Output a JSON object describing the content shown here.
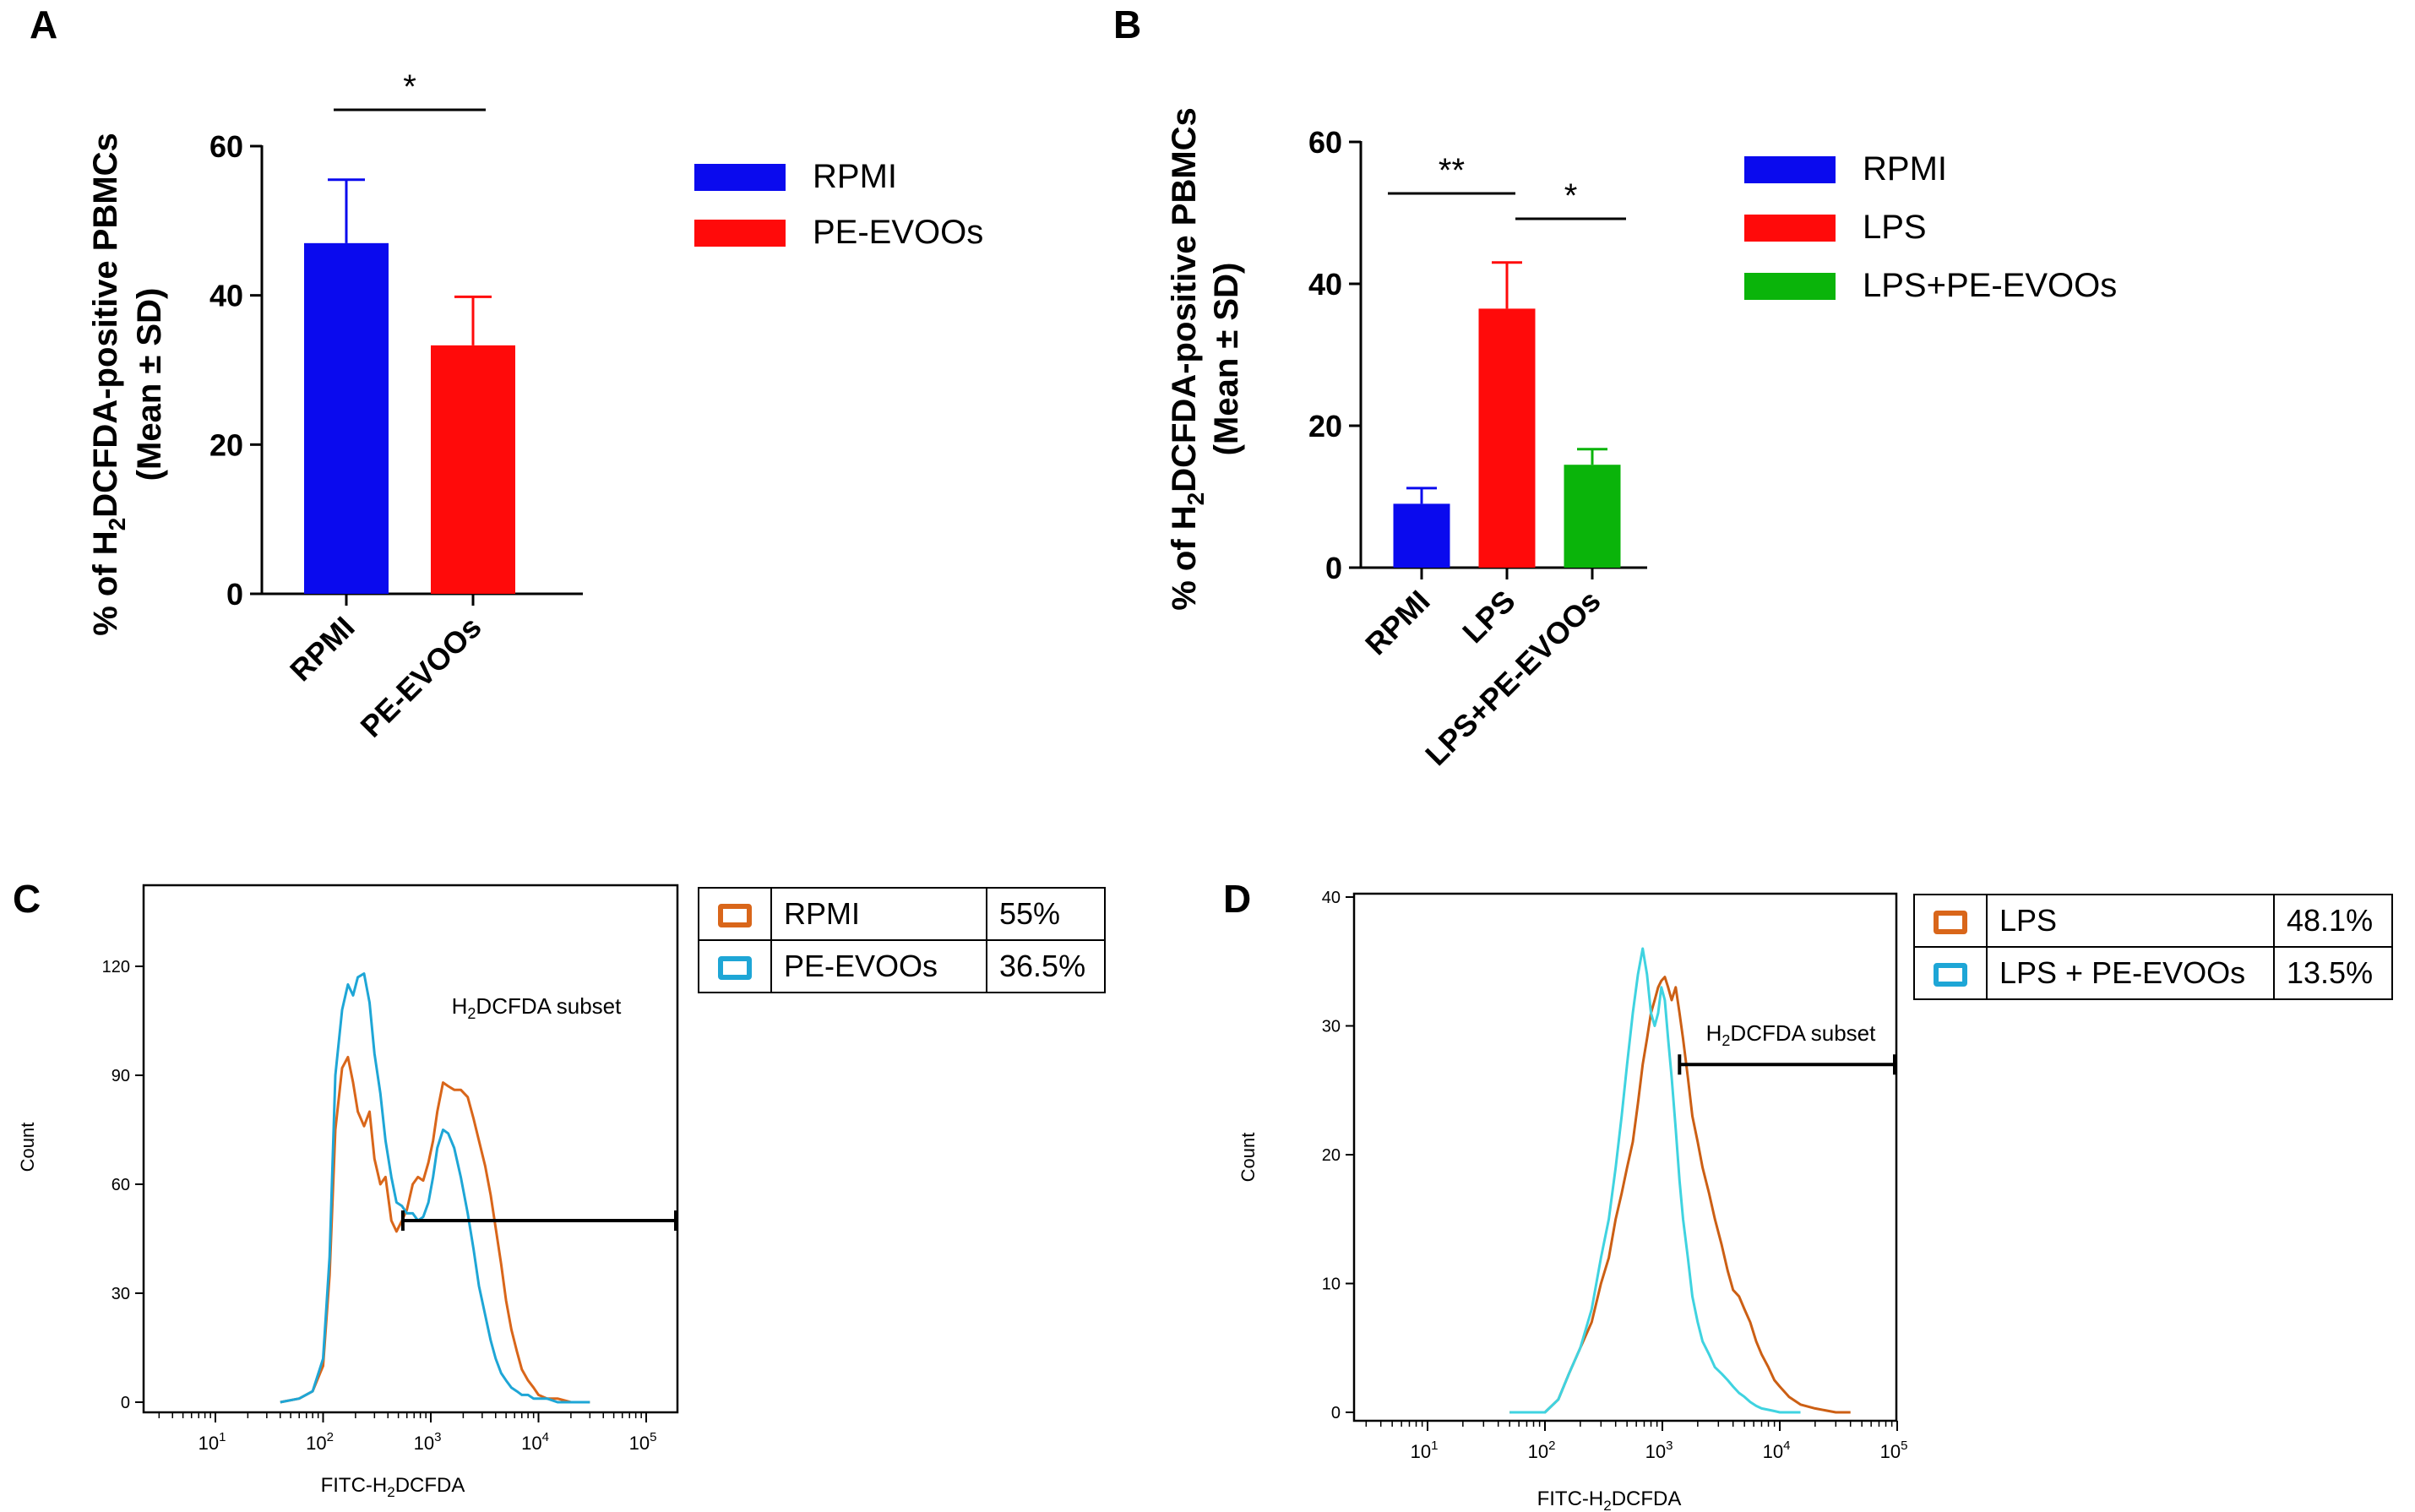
{
  "chart_data": [
    {
      "panel": "A",
      "type": "bar",
      "ylabel_line1": "% of H",
      "ylabel_sub": "2",
      "ylabel_line1_rest": "DCFDA-positive PBMCs",
      "ylabel_line2": "(Mean ± SD)",
      "categories": [
        "RPMI",
        "PE-EVOOs"
      ],
      "values": [
        47,
        33.3
      ],
      "errors": [
        8.5,
        6.5
      ],
      "colors": [
        "#0a0aee",
        "#ff0a0a"
      ],
      "ylim": [
        0,
        60
      ],
      "yticks": [
        0,
        20,
        40,
        60
      ],
      "legend": [
        {
          "label": "RPMI",
          "color": "#0a0aee"
        },
        {
          "label": "PE-EVOOs",
          "color": "#ff0a0a"
        }
      ],
      "significance": [
        {
          "from": 0,
          "to": 1,
          "label": "*"
        }
      ]
    },
    {
      "panel": "B",
      "type": "bar",
      "ylabel_line1": "% of H",
      "ylabel_sub": "2",
      "ylabel_line1_rest": "DCFDA-positive PBMCs",
      "ylabel_line2": "(Mean ± SD)",
      "categories": [
        "RPMI",
        "LPS",
        "LPS+PE-EVOOs"
      ],
      "values": [
        9,
        36.5,
        14.5
      ],
      "errors": [
        2.2,
        6.5,
        2.2
      ],
      "colors": [
        "#0a0aee",
        "#ff0a0a",
        "#0ab40a"
      ],
      "ylim": [
        0,
        60
      ],
      "yticks": [
        0,
        20,
        40,
        60
      ],
      "legend": [
        {
          "label": "RPMI",
          "color": "#0a0aee"
        },
        {
          "label": "LPS",
          "color": "#ff0a0a"
        },
        {
          "label": "LPS+PE-EVOOs",
          "color": "#0ab40a"
        }
      ],
      "significance": [
        {
          "from": 0,
          "to": 1,
          "label": "**"
        },
        {
          "from": 1,
          "to": 2,
          "label": "*"
        }
      ]
    },
    {
      "panel": "C",
      "type": "line",
      "xscale": "log",
      "xlabel_pre": "FITC-H",
      "xlabel_sub": "2",
      "xlabel_post": "DCFDA",
      "ylabel": "Count",
      "ylim": [
        0,
        140
      ],
      "yticks": [
        0,
        30,
        60,
        90,
        120
      ],
      "xtick_exponents": [
        1,
        2,
        3,
        4,
        5
      ],
      "gate_label_pre": "H",
      "gate_label_sub": "2",
      "gate_label_post": "DCFDA subset",
      "gate_range": [
        550,
        200000
      ],
      "gate_y": 50,
      "series": [
        {
          "name": "RPMI",
          "color": "#d9661a",
          "x": [
            40,
            60,
            80,
            100,
            115,
            130,
            150,
            170,
            190,
            210,
            240,
            270,
            300,
            340,
            380,
            430,
            480,
            540,
            600,
            680,
            760,
            850,
            950,
            1050,
            1150,
            1300,
            1450,
            1650,
            1900,
            2200,
            2500,
            2800,
            3200,
            3600,
            4000,
            4500,
            5000,
            5600,
            6300,
            7000,
            8000,
            9000,
            10000,
            12000,
            15000,
            20000,
            30000
          ],
          "y": [
            0,
            1,
            3,
            10,
            35,
            75,
            92,
            95,
            88,
            80,
            76,
            80,
            67,
            60,
            62,
            50,
            47,
            50,
            53,
            60,
            62,
            61,
            66,
            72,
            80,
            88,
            87,
            86,
            86,
            84,
            78,
            72,
            65,
            57,
            48,
            38,
            28,
            20,
            14,
            9,
            6,
            4,
            2,
            1,
            1,
            0,
            0
          ]
        },
        {
          "name": "PE-EVOOs",
          "color": "#1ea6d6",
          "x": [
            40,
            60,
            80,
            100,
            115,
            130,
            150,
            170,
            190,
            210,
            240,
            270,
            300,
            340,
            380,
            430,
            480,
            540,
            600,
            680,
            760,
            850,
            950,
            1050,
            1150,
            1300,
            1450,
            1650,
            1900,
            2200,
            2500,
            2800,
            3200,
            3600,
            4000,
            4500,
            5000,
            5600,
            6300,
            7000,
            8000,
            9000,
            10000,
            12000,
            15000,
            20000,
            30000
          ],
          "y": [
            0,
            1,
            3,
            12,
            40,
            90,
            108,
            115,
            112,
            117,
            118,
            110,
            96,
            85,
            72,
            62,
            55,
            54,
            52,
            52,
            50,
            51,
            55,
            62,
            70,
            75,
            74,
            70,
            62,
            52,
            42,
            32,
            24,
            17,
            12,
            8,
            6,
            4,
            3,
            2,
            2,
            1,
            1,
            1,
            0,
            0,
            0
          ]
        }
      ],
      "legend_rows": [
        {
          "label": "RPMI",
          "value": "55%",
          "color": "#d9661a"
        },
        {
          "label": "PE-EVOOs",
          "value": "36.5%",
          "color": "#1ea6d6"
        }
      ]
    },
    {
      "panel": "D",
      "type": "line",
      "xscale": "log",
      "xlabel_pre": "FITC-H",
      "xlabel_sub": "2",
      "xlabel_post": "DCFDA",
      "ylabel": "Count",
      "ylim": [
        0,
        40
      ],
      "yticks": [
        0,
        10,
        20,
        30,
        40
      ],
      "xtick_exponents": [
        1,
        2,
        3,
        4,
        5
      ],
      "gate_label_pre": "H",
      "gate_label_sub": "2",
      "gate_label_post": "DCFDA subset",
      "gate_range": [
        1400,
        100000
      ],
      "gate_y": 27,
      "series": [
        {
          "name": "LPS",
          "color": "#cc5f14",
          "x": [
            50,
            70,
            100,
            130,
            160,
            200,
            250,
            300,
            350,
            400,
            450,
            500,
            560,
            620,
            680,
            740,
            800,
            860,
            920,
            980,
            1050,
            1120,
            1200,
            1300,
            1400,
            1500,
            1650,
            1800,
            2000,
            2200,
            2500,
            2800,
            3200,
            3600,
            4000,
            4500,
            5000,
            5600,
            6300,
            7000,
            8000,
            9000,
            10000,
            12000,
            15000,
            20000,
            30000,
            40000
          ],
          "y": [
            0,
            0,
            0,
            1,
            3,
            5,
            7,
            10,
            12,
            15,
            17,
            19,
            21,
            24,
            27,
            29,
            31,
            32,
            33,
            33.5,
            33.8,
            33,
            32,
            33,
            31,
            29,
            26,
            23,
            21,
            19,
            17,
            15,
            13,
            11,
            9.5,
            9,
            8,
            7,
            5.5,
            4.5,
            3.5,
            2.5,
            2,
            1.2,
            0.6,
            0.3,
            0,
            0
          ]
        },
        {
          "name": "LPS + PE-EVOOs",
          "color": "#3fd3e0",
          "x": [
            50,
            70,
            100,
            130,
            160,
            200,
            250,
            300,
            350,
            400,
            450,
            500,
            560,
            620,
            680,
            740,
            800,
            860,
            920,
            980,
            1050,
            1120,
            1200,
            1300,
            1400,
            1500,
            1650,
            1800,
            2000,
            2200,
            2500,
            2800,
            3200,
            3600,
            4000,
            4500,
            5000,
            5600,
            6300,
            7000,
            8000,
            9000,
            10000,
            12000,
            15000
          ],
          "y": [
            0,
            0,
            0,
            1,
            3,
            5,
            8,
            12,
            15,
            19,
            23,
            27,
            31,
            34,
            36,
            34,
            31,
            30,
            31,
            33,
            32,
            29,
            26,
            22,
            18,
            15,
            12,
            9,
            7,
            5.5,
            4.5,
            3.5,
            3,
            2.5,
            2,
            1.5,
            1.2,
            0.8,
            0.5,
            0.3,
            0.2,
            0.1,
            0,
            0,
            0
          ]
        }
      ],
      "legend_rows": [
        {
          "label": "LPS",
          "value": "48.1%",
          "color": "#d9661a"
        },
        {
          "label": "LPS + PE-EVOOs",
          "value": "13.5%",
          "color": "#1ea6d6"
        }
      ]
    }
  ]
}
